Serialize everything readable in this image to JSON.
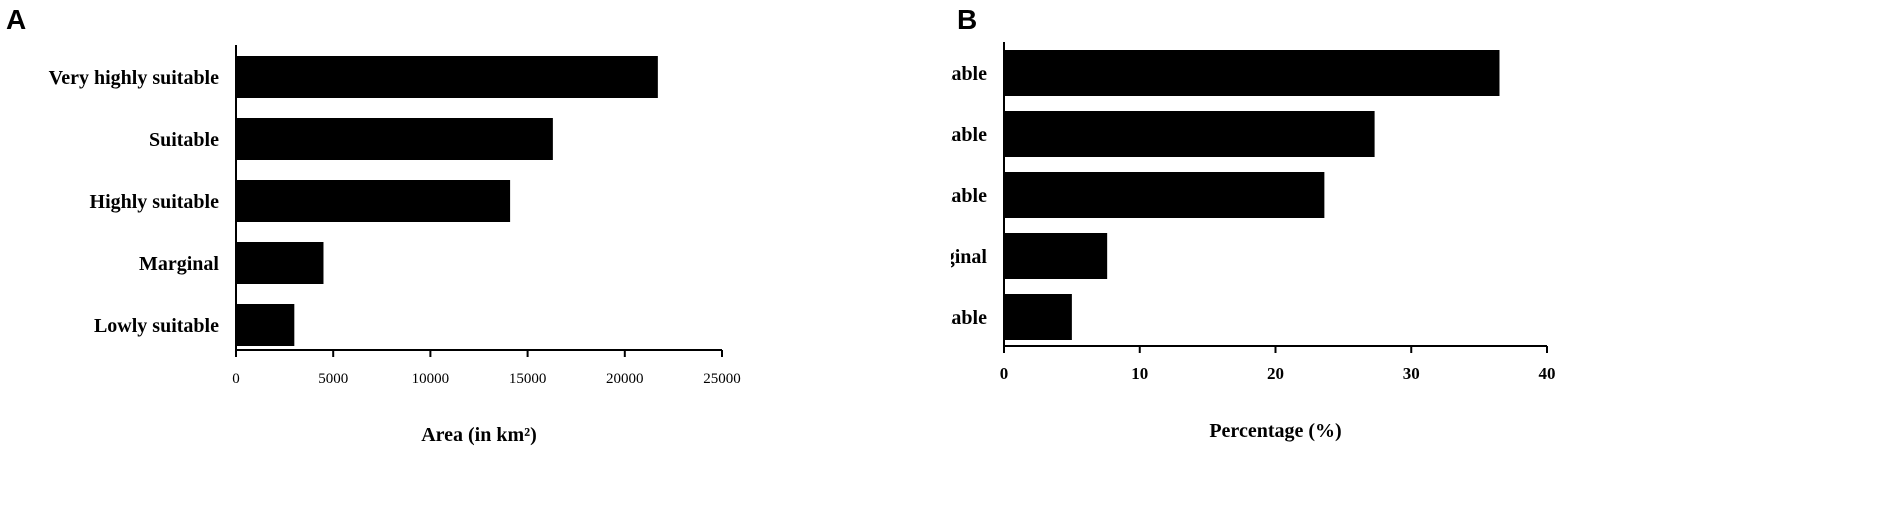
{
  "chart_data": [
    {
      "panel": "A",
      "type": "bar",
      "orientation": "horizontal",
      "categories": [
        "Very highly suitable",
        "Suitable",
        "Highly suitable",
        "Marginal",
        "Lowly suitable"
      ],
      "values": [
        21700,
        16300,
        14100,
        4500,
        3000
      ],
      "xlabel": "Area (in km²)",
      "ylabel": "",
      "xlim": [
        0,
        25000
      ],
      "xticks": [
        "0",
        "5000",
        "10000",
        "15000",
        "20000",
        "25000"
      ],
      "bar_color": "#000000",
      "grid": false,
      "legend": "none"
    },
    {
      "panel": "B",
      "type": "bar",
      "orientation": "horizontal",
      "categories": [
        "Very highly suitable",
        "Suitable",
        "Highly suitable",
        "Marginal",
        "Lowly suitable"
      ],
      "values": [
        36.5,
        27.3,
        23.6,
        7.6,
        5.0
      ],
      "xlabel": "Percentage (%)",
      "ylabel": "",
      "xlim": [
        0,
        40
      ],
      "xticks": [
        "0",
        "10",
        "20",
        "30",
        "40"
      ],
      "bar_color": "#000000",
      "grid": false,
      "legend": "none"
    }
  ]
}
